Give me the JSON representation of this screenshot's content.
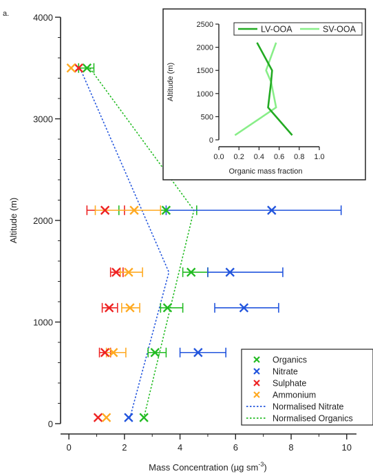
{
  "panel_label": "a.",
  "chart_data": [
    {
      "type": "scatter",
      "title": "",
      "xlabel": "Mass Concentration (µg sm",
      "xlabel_superscript": "-3",
      "xlabel_close": ")",
      "ylabel": "Altitude (m)",
      "xlim": [
        -0.3,
        10.6
      ],
      "ylim": [
        0,
        4000
      ],
      "x_ticks": [
        0,
        2,
        4,
        6,
        8,
        10
      ],
      "x_tick_labels": [
        "0",
        "2",
        "4",
        "6",
        "8",
        "10"
      ],
      "y_ticks": [
        0,
        1000,
        2000,
        3000,
        4000
      ],
      "y_tick_labels": [
        "0",
        "1000",
        "2000",
        "3000",
        "4000"
      ],
      "grid": false,
      "legend_position": "bottom-right",
      "series": [
        {
          "name": "Organics",
          "color": "#22bb22",
          "marker": "x",
          "points": [
            {
              "x": 0.65,
              "y": 3500,
              "err_low": 0.35,
              "err_high": 0.9
            },
            {
              "x": 3.5,
              "y": 2100,
              "err_low": 1.8,
              "err_high": 4.6
            },
            {
              "x": 4.4,
              "y": 1490,
              "err_low": 4.1,
              "err_high": 5.0
            },
            {
              "x": 3.55,
              "y": 1140,
              "err_low": 3.3,
              "err_high": 4.1
            },
            {
              "x": 3.1,
              "y": 700,
              "err_low": 2.85,
              "err_high": 3.5
            },
            {
              "x": 2.7,
              "y": 60
            }
          ]
        },
        {
          "name": "Nitrate",
          "color": "#2255dd",
          "marker": "x",
          "points": [
            {
              "x": 7.3,
              "y": 2100,
              "err_low": 3.5,
              "err_high": 9.8
            },
            {
              "x": 5.8,
              "y": 1490,
              "err_low": 5.0,
              "err_high": 7.7
            },
            {
              "x": 6.3,
              "y": 1140,
              "err_low": 5.25,
              "err_high": 7.55
            },
            {
              "x": 4.65,
              "y": 700,
              "err_low": 4.0,
              "err_high": 5.65
            },
            {
              "x": 2.15,
              "y": 60
            }
          ]
        },
        {
          "name": "Sulphate",
          "color": "#ee2222",
          "marker": "x",
          "points": [
            {
              "x": 0.35,
              "y": 3500
            },
            {
              "x": 1.3,
              "y": 2100,
              "err_low": 0.65,
              "err_high": 2.0
            },
            {
              "x": 1.7,
              "y": 1490,
              "err_low": 1.5,
              "err_high": 1.95
            },
            {
              "x": 1.45,
              "y": 1140,
              "err_low": 1.2,
              "err_high": 1.75
            },
            {
              "x": 1.3,
              "y": 700,
              "err_low": 1.1,
              "err_high": 1.5
            },
            {
              "x": 1.05,
              "y": 60
            }
          ]
        },
        {
          "name": "Ammonium",
          "color": "#ffaa22",
          "marker": "x",
          "points": [
            {
              "x": 0.08,
              "y": 3500
            },
            {
              "x": 2.35,
              "y": 2100,
              "err_low": 0.95,
              "err_high": 3.3
            },
            {
              "x": 2.15,
              "y": 1490,
              "err_low": 1.85,
              "err_high": 2.65
            },
            {
              "x": 2.2,
              "y": 1140,
              "err_low": 1.9,
              "err_high": 2.55
            },
            {
              "x": 1.6,
              "y": 700,
              "err_low": 1.35,
              "err_high": 2.05
            },
            {
              "x": 1.35,
              "y": 60
            }
          ]
        },
        {
          "name": "Normalised Nitrate",
          "color": "#2255dd",
          "style": "dotted-line",
          "points": [
            {
              "x": 0.4,
              "y": 3500
            },
            {
              "x": 3.6,
              "y": 1490
            },
            {
              "x": 2.2,
              "y": 60
            }
          ]
        },
        {
          "name": "Normalised Organics",
          "color": "#22bb22",
          "style": "dotted-line",
          "points": [
            {
              "x": 0.75,
              "y": 3500
            },
            {
              "x": 4.5,
              "y": 2100
            },
            {
              "x": 2.7,
              "y": 60
            }
          ]
        }
      ],
      "legend": [
        {
          "label": "Organics",
          "color": "#22bb22",
          "kind": "marker"
        },
        {
          "label": "Nitrate",
          "color": "#2255dd",
          "kind": "marker"
        },
        {
          "label": "Sulphate",
          "color": "#ee2222",
          "kind": "marker"
        },
        {
          "label": "Ammonium",
          "color": "#ffaa22",
          "kind": "marker"
        },
        {
          "label": "Normalised Nitrate",
          "color": "#2255dd",
          "kind": "dotted"
        },
        {
          "label": "Normalised Organics",
          "color": "#22bb22",
          "kind": "dotted"
        }
      ]
    },
    {
      "type": "line",
      "title": "",
      "xlabel": "Organic mass fraction",
      "ylabel": "Altitude (m)",
      "xlim": [
        0,
        1.0
      ],
      "ylim": [
        0,
        2500
      ],
      "x_ticks": [
        0,
        0.2,
        0.4,
        0.6,
        0.8,
        1.0
      ],
      "x_tick_labels": [
        "0.0",
        "0.2",
        "0.4",
        "0.6",
        "0.8",
        "1.0"
      ],
      "y_ticks": [
        0,
        500,
        1000,
        1500,
        2000,
        2500
      ],
      "y_tick_labels": [
        "0",
        "500",
        "1000",
        "1500",
        "2000",
        "2500"
      ],
      "grid": false,
      "legend_position": "top-right",
      "series": [
        {
          "name": "LV-OOA",
          "color": "#22aa22",
          "points": [
            {
              "x": 0.38,
              "y": 2100
            },
            {
              "x": 0.53,
              "y": 1500
            },
            {
              "x": 0.52,
              "y": 1250
            },
            {
              "x": 0.49,
              "y": 700
            },
            {
              "x": 0.73,
              "y": 100
            }
          ]
        },
        {
          "name": "SV-OOA",
          "color": "#88ee88",
          "points": [
            {
              "x": 0.57,
              "y": 2100
            },
            {
              "x": 0.47,
              "y": 1500
            },
            {
              "x": 0.52,
              "y": 1250
            },
            {
              "x": 0.57,
              "y": 700
            },
            {
              "x": 0.16,
              "y": 100
            }
          ]
        }
      ]
    }
  ]
}
